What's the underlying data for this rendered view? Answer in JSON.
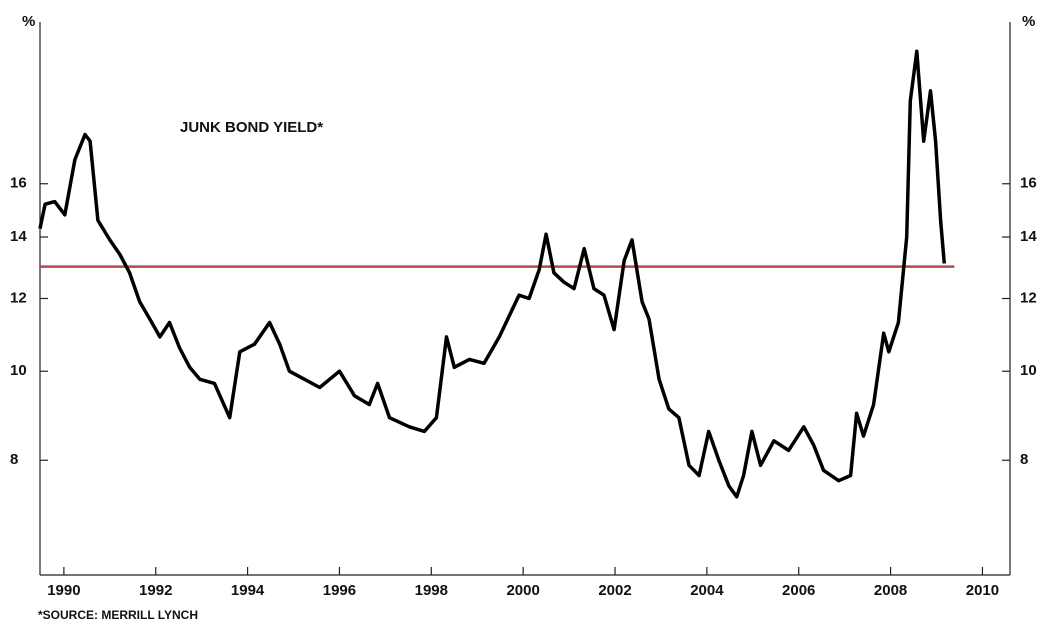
{
  "chart_data": {
    "type": "line",
    "title": "JUNK BOND YIELD*",
    "source": "*SOURCE: MERRILL LYNCH",
    "y_unit": "%",
    "log_y": true,
    "color": "#000000",
    "reference_line": {
      "value": 13,
      "color": "#b5484a"
    },
    "xlim": [
      1989.48,
      2010.6
    ],
    "xticks": [
      1990,
      1992,
      1994,
      1996,
      1998,
      2000,
      2002,
      2004,
      2006,
      2008,
      2010
    ],
    "ylim": [
      6,
      24
    ],
    "yticks": [
      8,
      10,
      12,
      14,
      16
    ],
    "x": [
      1989.48,
      1989.59,
      1989.8,
      1990.02,
      1990.24,
      1990.46,
      1990.57,
      1990.74,
      1991.0,
      1991.22,
      1991.43,
      1991.65,
      1991.87,
      1992.09,
      1992.3,
      1992.52,
      1992.74,
      1992.96,
      1993.28,
      1993.61,
      1993.83,
      1994.15,
      1994.48,
      1994.7,
      1994.91,
      1995.24,
      1995.57,
      1996.0,
      1996.33,
      1996.65,
      1996.83,
      1997.09,
      1997.52,
      1997.85,
      1998.11,
      1998.33,
      1998.5,
      1998.83,
      1999.15,
      1999.48,
      1999.91,
      2000.13,
      2000.35,
      2000.5,
      2000.67,
      2000.89,
      2001.11,
      2001.33,
      2001.54,
      2001.76,
      2001.98,
      2002.2,
      2002.37,
      2002.59,
      2002.74,
      2002.96,
      2003.17,
      2003.39,
      2003.61,
      2003.83,
      2004.04,
      2004.26,
      2004.48,
      2004.65,
      2004.8,
      2004.98,
      2005.17,
      2005.46,
      2005.78,
      2006.11,
      2006.33,
      2006.54,
      2006.87,
      2007.13,
      2007.26,
      2007.41,
      2007.63,
      2007.85,
      2007.96,
      2008.17,
      2008.35,
      2008.43,
      2008.57,
      2008.72,
      2008.87,
      2008.98,
      2009.09,
      2009.17
    ],
    "series": [
      {
        "name": "Junk bond yield",
        "values": [
          14.3,
          15.2,
          15.3,
          14.8,
          17.0,
          18.1,
          17.8,
          14.6,
          13.9,
          13.4,
          12.8,
          11.9,
          11.4,
          10.9,
          11.3,
          10.6,
          10.1,
          9.8,
          9.7,
          8.9,
          10.5,
          10.7,
          11.3,
          10.7,
          10.0,
          9.8,
          9.6,
          10.0,
          9.4,
          9.2,
          9.7,
          8.9,
          8.7,
          8.6,
          8.9,
          10.9,
          10.1,
          10.3,
          10.2,
          10.9,
          12.1,
          12.0,
          12.9,
          14.1,
          12.8,
          12.5,
          12.3,
          13.6,
          12.3,
          12.1,
          11.1,
          13.2,
          13.9,
          11.9,
          11.4,
          9.8,
          9.1,
          8.9,
          7.9,
          7.7,
          8.6,
          8.0,
          7.5,
          7.3,
          7.7,
          8.6,
          7.9,
          8.4,
          8.2,
          8.7,
          8.3,
          7.8,
          7.6,
          7.7,
          9.0,
          8.5,
          9.2,
          11.0,
          10.5,
          11.3,
          14.0,
          19.7,
          22.3,
          17.8,
          20.2,
          17.8,
          14.6,
          13.1
        ]
      }
    ]
  }
}
